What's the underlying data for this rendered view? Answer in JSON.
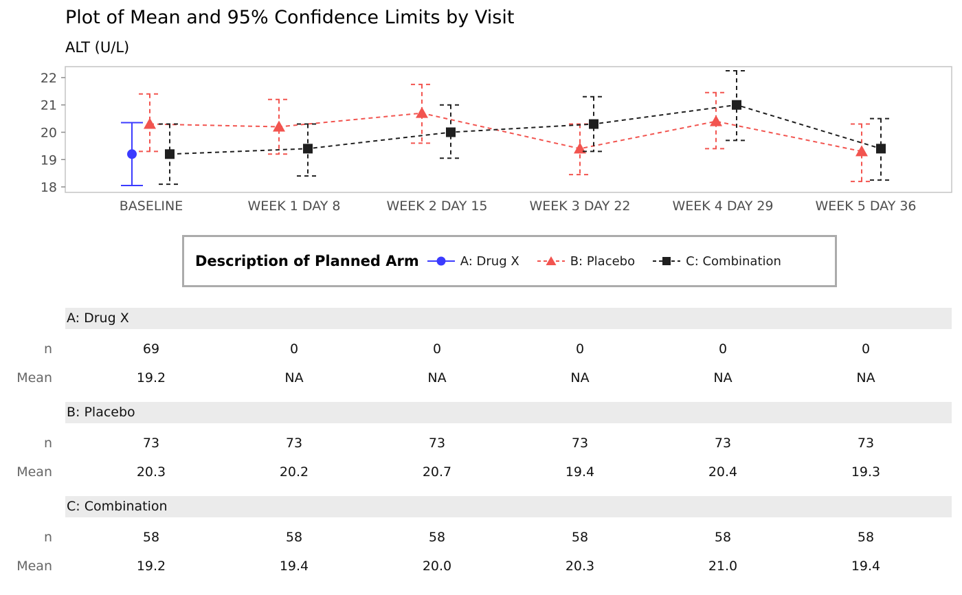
{
  "title": "Plot of Mean and 95% Confidence Limits by Visit",
  "subtitle": "ALT (U/L)",
  "legend": {
    "title": "Description of Planned Arm",
    "items": [
      {
        "label": "A: Drug X",
        "color": "#3b3bff",
        "marker": "circle",
        "line": "solid"
      },
      {
        "label": "B: Placebo",
        "color": "#f2544f",
        "marker": "triangle",
        "line": "dashed"
      },
      {
        "label": "C: Combination",
        "color": "#1f1f1f",
        "marker": "square",
        "line": "dashed"
      }
    ]
  },
  "chart_data": {
    "type": "line",
    "title": "Plot of Mean and 95% Confidence Limits by Visit",
    "ylabel": "ALT (U/L)",
    "categories": [
      "BASELINE",
      "WEEK 1 DAY 8",
      "WEEK 2 DAY 15",
      "WEEK 3 DAY 22",
      "WEEK 4 DAY 29",
      "WEEK 5 DAY 36"
    ],
    "ylim": [
      17.8,
      22.4
    ],
    "yticks": [
      18,
      19,
      20,
      21,
      22
    ],
    "grid": false,
    "legend_position": "bottom",
    "series": [
      {
        "name": "A: Drug X",
        "color": "#3b3bff",
        "marker": "circle",
        "line": "solid",
        "means": [
          19.2,
          null,
          null,
          null,
          null,
          null
        ],
        "ci_low": [
          18.05,
          null,
          null,
          null,
          null,
          null
        ],
        "ci_high": [
          20.35,
          null,
          null,
          null,
          null,
          null
        ],
        "x_offsets": [
          -28,
          0,
          0,
          0,
          0,
          0
        ]
      },
      {
        "name": "B: Placebo",
        "color": "#f2544f",
        "marker": "triangle",
        "line": "dashed",
        "means": [
          20.3,
          20.2,
          20.7,
          19.4,
          20.4,
          19.3
        ],
        "ci_low": [
          19.3,
          19.2,
          19.6,
          18.45,
          19.4,
          18.2
        ],
        "ci_high": [
          21.4,
          21.2,
          21.75,
          20.3,
          21.45,
          20.3
        ],
        "x_offsets": [
          -2,
          -22,
          -22,
          0,
          -10,
          -6
        ]
      },
      {
        "name": "C: Combination",
        "color": "#1f1f1f",
        "marker": "square",
        "line": "dashed",
        "means": [
          19.2,
          19.4,
          20.0,
          20.3,
          21.0,
          19.4
        ],
        "ci_low": [
          18.1,
          18.4,
          19.05,
          19.3,
          19.7,
          18.25
        ],
        "ci_high": [
          20.3,
          20.3,
          21.0,
          21.3,
          22.25,
          20.5
        ],
        "x_offsets": [
          27,
          20,
          20,
          20,
          20,
          22
        ]
      }
    ]
  },
  "table": {
    "stat_labels": {
      "n": "n",
      "mean": "Mean"
    },
    "sections": [
      {
        "name": "A: Drug X",
        "n": [
          "69",
          "0",
          "0",
          "0",
          "0",
          "0"
        ],
        "mean": [
          "19.2",
          "NA",
          "NA",
          "NA",
          "NA",
          "NA"
        ]
      },
      {
        "name": "B: Placebo",
        "n": [
          "73",
          "73",
          "73",
          "73",
          "73",
          "73"
        ],
        "mean": [
          "20.3",
          "20.2",
          "20.7",
          "19.4",
          "20.4",
          "19.3"
        ]
      },
      {
        "name": "C: Combination",
        "n": [
          "58",
          "58",
          "58",
          "58",
          "58",
          "58"
        ],
        "mean": [
          "19.2",
          "19.4",
          "20.0",
          "20.3",
          "21.0",
          "19.4"
        ]
      }
    ]
  }
}
